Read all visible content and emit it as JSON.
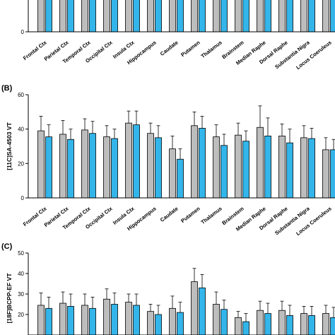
{
  "colors": {
    "series_a": "#bdbdbd",
    "series_b": "#33b5ea",
    "stroke": "#000000"
  },
  "chart_data": [
    {
      "type": "bar",
      "panel_label": "",
      "ylabel": "",
      "ylim": [
        0,
        10
      ],
      "yticks": [
        0
      ],
      "categories": [
        "Frontal Ctx",
        "Parietal Ctx",
        "Temporal Ctx",
        "Occipital Ctx",
        "Insula Ctx",
        "Hippocampus",
        "Caudate",
        "Putamen",
        "Thalamus",
        "Brainstem",
        "Median Raphe",
        "Dorsal Raphe",
        "Substantia Nigra",
        "Locus Coeruleus"
      ],
      "series": [
        {
          "values": [
            10,
            10,
            10,
            10,
            10,
            10,
            10,
            10,
            10,
            7.7,
            8.2,
            10,
            7.8,
            10
          ]
        },
        {
          "values": [
            10,
            10,
            10,
            10,
            10,
            10,
            10,
            10,
            10,
            7.2,
            7.5,
            9.3,
            7.5,
            10
          ]
        }
      ]
    },
    {
      "type": "bar",
      "panel_label": "(B)",
      "ylabel": "[11C]SA-4503 VT",
      "ylim": [
        0,
        60
      ],
      "yticks": [
        0,
        20,
        40,
        60
      ],
      "categories": [
        "Frontal Ctx",
        "Parietal Ctx",
        "Temporal Ctx",
        "Occipital Ctx",
        "Insula Ctx",
        "Hippocampus",
        "Caudate",
        "Putamen",
        "Thalamus",
        "Brainstem",
        "Median Raphe",
        "Dorsal Raphe",
        "Substantia Nigra",
        "Locus Coeruleus"
      ],
      "series": [
        {
          "values": [
            39,
            37,
            39.5,
            35.5,
            43.5,
            37.5,
            28.5,
            42,
            35.5,
            36.5,
            41,
            36,
            35,
            28
          ],
          "errors": [
            8.5,
            8,
            6.5,
            6.5,
            7,
            6,
            7.5,
            8,
            7,
            7,
            12.5,
            7,
            7,
            7
          ]
        },
        {
          "values": [
            35.5,
            34,
            37.5,
            34.5,
            42.5,
            35,
            22.5,
            40.5,
            30.5,
            33,
            36,
            32,
            34.5,
            28
          ],
          "errors": [
            7,
            6,
            7,
            5.5,
            8,
            7,
            6,
            7,
            6.5,
            6,
            10.5,
            8,
            6,
            6
          ]
        }
      ]
    },
    {
      "type": "bar",
      "panel_label": "(C)",
      "ylabel": "[18F]BCPP-EF VT",
      "ylim": [
        10,
        50
      ],
      "yticks": [
        20,
        30,
        40,
        50
      ],
      "categories": [
        "Frontal Ctx",
        "Parietal Ctx",
        "Temporal Ctx",
        "Occipital Ctx",
        "Insula Ctx",
        "Hippocampus",
        "Caudate",
        "Putamen",
        "Thalamus",
        "Brainstem",
        "Median Raphe",
        "Dorsal Raphe",
        "Substantia Nigra",
        "Locus Coeruleus"
      ],
      "series": [
        {
          "values": [
            24.5,
            25.5,
            24.5,
            27.5,
            26,
            21.5,
            23,
            36,
            25,
            18.5,
            22,
            22,
            20.5,
            20.5
          ],
          "errors": [
            6,
            5.5,
            5.5,
            5,
            4,
            3.5,
            6,
            6.5,
            6,
            3,
            4.5,
            4.5,
            3.5,
            4
          ]
        },
        {
          "values": [
            23,
            24,
            23,
            25,
            24.5,
            20,
            21,
            33,
            22.5,
            16.5,
            20.5,
            19.5,
            19.5,
            18.5
          ],
          "errors": [
            5.5,
            6,
            5.5,
            5.5,
            5.5,
            4.5,
            5,
            6.5,
            4.5,
            4,
            5,
            5,
            4.5,
            5
          ]
        }
      ]
    }
  ]
}
